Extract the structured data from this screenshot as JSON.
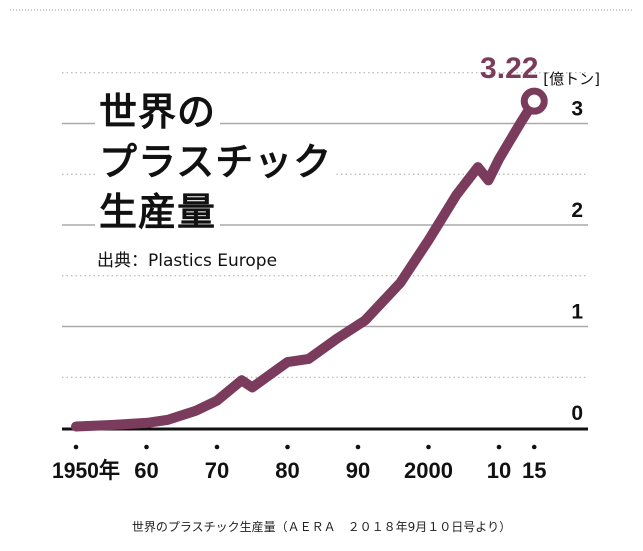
{
  "chart_data": {
    "type": "line",
    "title_lines": [
      "世界の",
      "プラスチック",
      "生産量"
    ],
    "source": "出典：Plastics Europe",
    "unit_label": "[億トン]",
    "xlabel": "",
    "ylabel": "",
    "x_tick_labels": [
      {
        "value": 1950,
        "label": "1950年"
      },
      {
        "value": 1960,
        "label": "60"
      },
      {
        "value": 1970,
        "label": "70"
      },
      {
        "value": 1980,
        "label": "80"
      },
      {
        "value": 1990,
        "label": "90"
      },
      {
        "value": 2000,
        "label": "2000"
      },
      {
        "value": 2010,
        "label": "10"
      },
      {
        "value": 2015,
        "label": "15"
      }
    ],
    "y_ticks": [
      0,
      1,
      2,
      3
    ],
    "ylim": [
      0,
      3.5
    ],
    "xlim": [
      1950,
      2015
    ],
    "grid": "solid at integers, dotted at half values",
    "end_label": "3.22",
    "series": [
      {
        "color": "#7b3b5c",
        "x": [
          1950,
          1955,
          1960,
          1963,
          1967,
          1970,
          1973.5,
          1975,
          1978,
          1980,
          1983,
          1987,
          1991,
          1996,
          2000,
          2004,
          2007,
          2008.5,
          2010,
          2013,
          2015
        ],
        "y": [
          0.015,
          0.03,
          0.05,
          0.08,
          0.17,
          0.27,
          0.47,
          0.4,
          0.55,
          0.65,
          0.68,
          0.88,
          1.06,
          1.43,
          1.85,
          2.3,
          2.57,
          2.44,
          2.65,
          3.0,
          3.22
        ]
      }
    ]
  },
  "caption": "世界のプラスチック生産量（ＡＥＲＡ　２０１８年9月１０日号より）"
}
